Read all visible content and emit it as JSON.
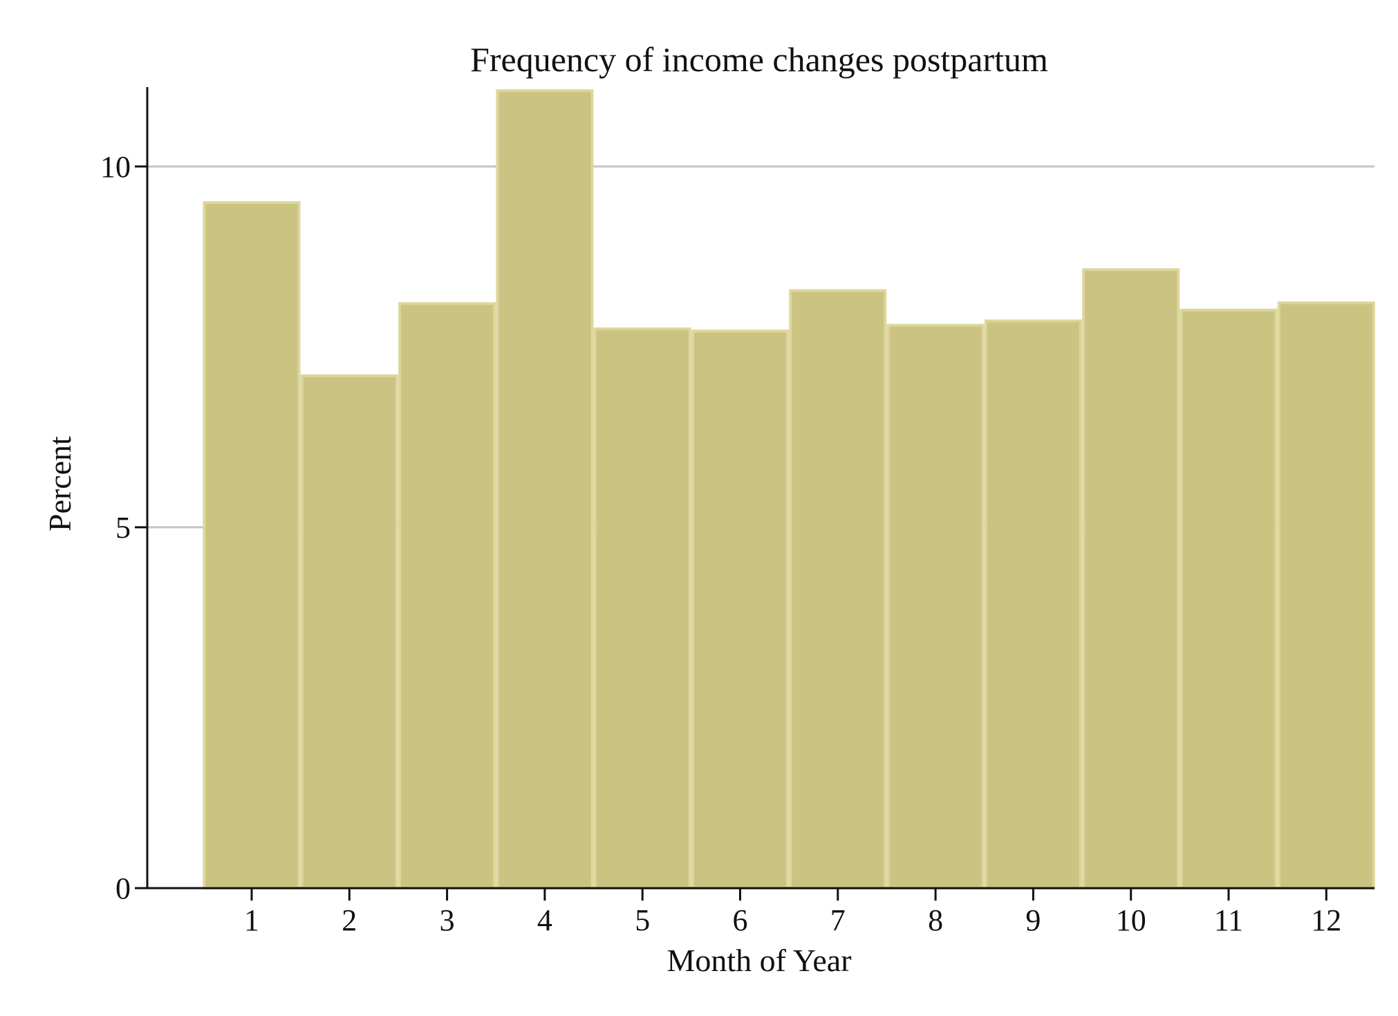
{
  "chart_data": {
    "type": "bar",
    "title": "Frequency of income changes postpartum",
    "xlabel": "Month of Year",
    "ylabel": "Percent",
    "categories": [
      "1",
      "2",
      "3",
      "4",
      "5",
      "6",
      "7",
      "8",
      "9",
      "10",
      "11",
      "12"
    ],
    "values": [
      9.5,
      7.1,
      8.1,
      11.05,
      7.75,
      7.72,
      8.28,
      7.8,
      7.86,
      8.57,
      8.01,
      8.11
    ],
    "ylim": [
      0,
      11.1
    ],
    "yticks": [
      "0",
      "5",
      "10"
    ],
    "ytick_values": [
      0,
      5,
      10
    ],
    "grid": "horizontal",
    "legend": "none",
    "colors": {
      "bar_fill": "#cbc382",
      "bar_edge": "#ddd69b",
      "grid": "#c4c4c4",
      "axis": "#111111"
    }
  }
}
